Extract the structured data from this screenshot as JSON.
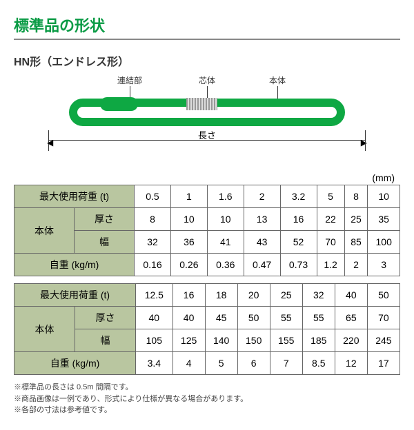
{
  "title": "標準品の形状",
  "subtitle": "HN形（エンドレス形）",
  "diagram": {
    "joint": "連結部",
    "core": "芯体",
    "body": "本体",
    "length": "長さ"
  },
  "unit": "(mm)",
  "colors": {
    "accent": "#0a9b45",
    "sling": "#0ea843",
    "header_bg": "#b9c6a0",
    "border": "#666"
  },
  "table1": {
    "loads": [
      "0.5",
      "1",
      "1.6",
      "2",
      "3.2",
      "5",
      "8",
      "10"
    ],
    "thickness": [
      "8",
      "10",
      "10",
      "13",
      "16",
      "22",
      "25",
      "35"
    ],
    "width": [
      "32",
      "36",
      "41",
      "43",
      "52",
      "70",
      "85",
      "100"
    ],
    "weight": [
      "0.16",
      "0.26",
      "0.36",
      "0.47",
      "0.73",
      "1.2",
      "2",
      "3"
    ]
  },
  "table2": {
    "loads": [
      "12.5",
      "16",
      "18",
      "20",
      "25",
      "32",
      "40",
      "50"
    ],
    "thickness": [
      "40",
      "40",
      "45",
      "50",
      "55",
      "55",
      "65",
      "70"
    ],
    "width": [
      "105",
      "125",
      "140",
      "150",
      "155",
      "185",
      "220",
      "245"
    ],
    "weight": [
      "3.4",
      "4",
      "5",
      "6",
      "7",
      "8.5",
      "12",
      "17"
    ]
  },
  "labels": {
    "load": "最大使用荷重 (t)",
    "body": "本体",
    "thickness": "厚さ",
    "width": "幅",
    "weight": "自重 (kg/m)"
  },
  "notes": [
    "※標準品の長さは 0.5m 間隔です。",
    "※商品画像は一例であり、形式により仕様が異なる場合があります。",
    "※各部の寸法は参考値です。"
  ]
}
